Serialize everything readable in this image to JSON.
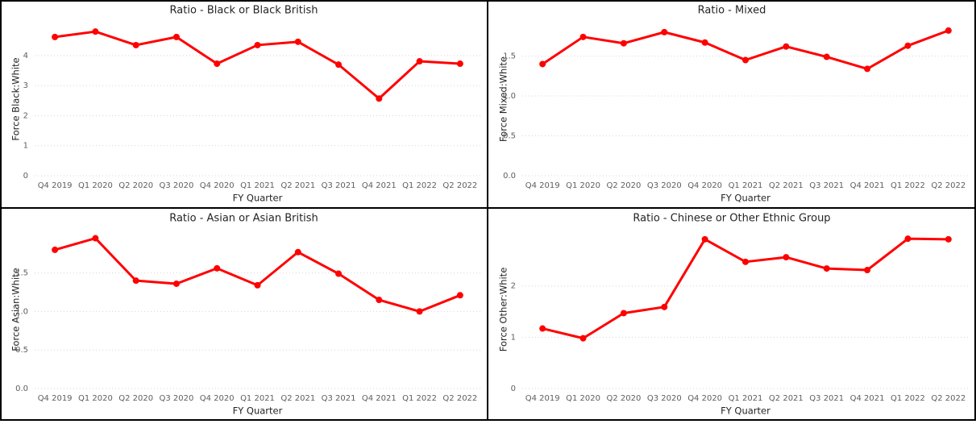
{
  "chart_data": [
    {
      "type": "line",
      "title": "Ratio - Black or Black British",
      "x_label": "FY Quarter",
      "y_label": "Force Black:White",
      "categories": [
        "Q4 2019",
        "Q1 2020",
        "Q2 2020",
        "Q3 2020",
        "Q4 2020",
        "Q1 2021",
        "Q2 2021",
        "Q3 2021",
        "Q4 2021",
        "Q1 2022",
        "Q2 2022"
      ],
      "values": [
        4.62,
        4.8,
        4.35,
        4.62,
        3.73,
        4.35,
        4.46,
        3.7,
        2.57,
        3.81,
        3.73
      ],
      "color": "#ff0000",
      "ylim": [
        0,
        5.1
      ],
      "yticks": [
        0,
        1,
        2,
        3,
        4
      ],
      "grid": true
    },
    {
      "type": "line",
      "title": "Ratio - Mixed",
      "x_label": "FY Quarter",
      "y_label": "Force Mixed:White",
      "categories": [
        "Q4 2019",
        "Q1 2020",
        "Q2 2020",
        "Q3 2020",
        "Q4 2020",
        "Q1 2021",
        "Q2 2021",
        "Q3 2021",
        "Q4 2021",
        "Q1 2022",
        "Q2 2022"
      ],
      "values": [
        1.4,
        1.74,
        1.66,
        1.8,
        1.67,
        1.45,
        1.62,
        1.49,
        1.34,
        1.63,
        1.82
      ],
      "color": "#ff0000",
      "ylim": [
        0,
        1.92
      ],
      "yticks": [
        {
          "value": 0,
          "label": "0.0"
        },
        0.5,
        {
          "value": 1,
          "label": "1.0"
        },
        1.5
      ],
      "grid": true
    },
    {
      "type": "line",
      "title": "Ratio - Asian or Asian British",
      "x_label": "FY Quarter",
      "y_label": "Force Asian:White",
      "categories": [
        "Q4 2019",
        "Q1 2020",
        "Q2 2020",
        "Q3 2020",
        "Q4 2020",
        "Q1 2021",
        "Q2 2021",
        "Q3 2021",
        "Q4 2021",
        "Q1 2022",
        "Q2 2022"
      ],
      "values": [
        1.8,
        1.95,
        1.4,
        1.36,
        1.56,
        1.34,
        1.77,
        1.49,
        1.15,
        1.0,
        1.21
      ],
      "color": "#ff0000",
      "ylim": [
        0,
        2.05
      ],
      "yticks": [
        {
          "value": 0,
          "label": "0.0"
        },
        0.5,
        {
          "value": 1,
          "label": "1.0"
        },
        1.5
      ],
      "grid": true
    },
    {
      "type": "line",
      "title": "Ratio - Chinese or Other Ethnic Group",
      "x_label": "FY Quarter",
      "y_label": "Force Other:White",
      "categories": [
        "Q4 2019",
        "Q1 2020",
        "Q2 2020",
        "Q3 2020",
        "Q4 2020",
        "Q1 2021",
        "Q2 2021",
        "Q3 2021",
        "Q4 2021",
        "Q1 2022",
        "Q2 2022"
      ],
      "values": [
        1.17,
        0.98,
        1.47,
        1.59,
        2.91,
        2.47,
        2.56,
        2.34,
        2.31,
        2.92,
        2.91
      ],
      "color": "#ff0000",
      "ylim": [
        0,
        3.08
      ],
      "yticks": [
        0,
        1,
        2
      ],
      "grid": true
    }
  ]
}
